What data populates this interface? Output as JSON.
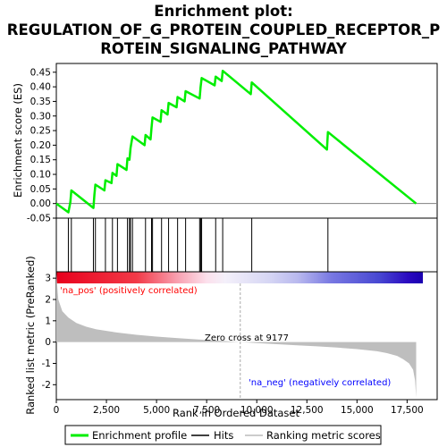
{
  "title_line1": "Enrichment plot:",
  "title_line2": "REGULATION_OF_G_PROTEIN_COUPLED_RECEPTOR_P",
  "title_line3": "ROTEIN_SIGNALING_PATHWAY",
  "colors": {
    "es_line": "#00ee00",
    "hits": "#000000",
    "metric_fill": "#bebebe",
    "pos_label": "#ff0000",
    "neg_label": "#0000ff",
    "zero_line": "#aaaaaa"
  },
  "legend": {
    "es": "Enrichment profile",
    "hits": "Hits",
    "metric": "Ranking metric scores"
  },
  "chart_data": [
    {
      "type": "line",
      "name": "enrichment-score",
      "ylabel": "Enrichment score (ES)",
      "xlim": [
        0,
        19000
      ],
      "ylim": [
        -0.05,
        0.48
      ],
      "yticks": [
        "-0.05",
        "0.00",
        "0.05",
        "0.10",
        "0.15",
        "0.20",
        "0.25",
        "0.30",
        "0.35",
        "0.40",
        "0.45"
      ],
      "x": [
        0,
        600,
        700,
        750,
        1850,
        1900,
        1950,
        2400,
        2450,
        2750,
        2800,
        3000,
        3050,
        3500,
        3550,
        3650,
        3700,
        3800,
        4400,
        4450,
        4700,
        4750,
        4800,
        5200,
        5250,
        5550,
        5600,
        6000,
        6050,
        6400,
        6450,
        7150,
        7200,
        7250,
        7900,
        7950,
        8250,
        8300,
        9700,
        9750,
        13500,
        13550,
        17950
      ],
      "y": [
        0.0,
        -0.03,
        0.005,
        0.045,
        -0.015,
        0.03,
        0.065,
        0.045,
        0.08,
        0.07,
        0.105,
        0.095,
        0.135,
        0.115,
        0.155,
        0.15,
        0.19,
        0.23,
        0.2,
        0.235,
        0.22,
        0.26,
        0.295,
        0.28,
        0.32,
        0.305,
        0.345,
        0.33,
        0.365,
        0.35,
        0.385,
        0.36,
        0.4,
        0.43,
        0.405,
        0.435,
        0.42,
        0.455,
        0.375,
        0.415,
        0.185,
        0.245,
        0.0
      ],
      "hits_x": [
        600,
        750,
        1850,
        1950,
        2450,
        2800,
        3050,
        3550,
        3650,
        3700,
        3800,
        4450,
        4750,
        4800,
        5250,
        5600,
        6050,
        6450,
        7150,
        7200,
        7250,
        7950,
        8300,
        9750,
        13550
      ],
      "hits_label": "Hits"
    },
    {
      "type": "area",
      "name": "ranked-list-metric",
      "xlabel": "Rank in Ordered Dataset",
      "ylabel": "Ranked list metric (PreRanked)",
      "xlim": [
        0,
        19000
      ],
      "ylim": [
        -2.7,
        3.3
      ],
      "xticks": [
        "0",
        "2,500",
        "5,000",
        "7,500",
        "10,000",
        "12,500",
        "15,000",
        "17,500"
      ],
      "yticks": [
        "-2",
        "-1",
        "0",
        "1",
        "2",
        "3"
      ],
      "x": [
        0,
        100,
        300,
        600,
        1000,
        1500,
        2000,
        3000,
        4000,
        5000,
        6000,
        7000,
        8000,
        9177,
        10000,
        11000,
        12000,
        13000,
        14000,
        15000,
        16000,
        16500,
        17000,
        17300,
        17600,
        17800,
        17900,
        17950
      ],
      "values": [
        3.2,
        2.0,
        1.45,
        1.15,
        0.9,
        0.72,
        0.6,
        0.45,
        0.34,
        0.26,
        0.19,
        0.13,
        0.07,
        0.0,
        -0.05,
        -0.1,
        -0.15,
        -0.2,
        -0.26,
        -0.33,
        -0.43,
        -0.52,
        -0.65,
        -0.8,
        -1.0,
        -1.3,
        -1.8,
        -2.6
      ],
      "zero_cross": 9177,
      "pos_label": "'na_pos' (positively correlated)",
      "neg_label": "'na_neg' (negatively correlated)",
      "zero_label": "Zero cross at 9177"
    }
  ]
}
